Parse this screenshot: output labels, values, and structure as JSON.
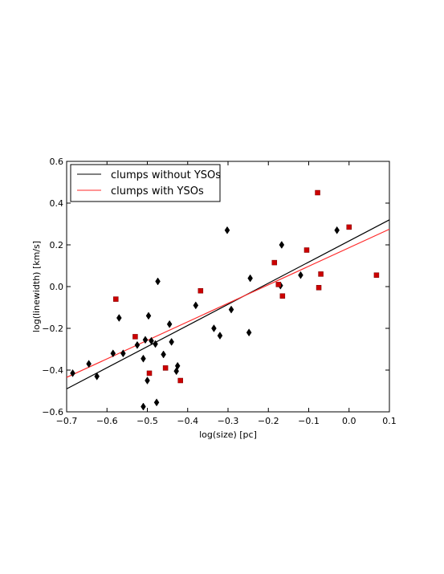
{
  "chart_data": {
    "type": "scatter",
    "xlabel": "log(size) [pc]",
    "ylabel": "log(linewidth) [km/s]",
    "xlim": [
      -0.7,
      0.1
    ],
    "ylim": [
      -0.6,
      0.6
    ],
    "xticks": [
      -0.7,
      -0.6,
      -0.5,
      -0.4,
      -0.3,
      -0.2,
      -0.1,
      0.0,
      0.1
    ],
    "yticks": [
      -0.6,
      -0.4,
      -0.2,
      0.0,
      0.2,
      0.4,
      0.6
    ],
    "xtick_labels": [
      "−0.7",
      "−0.6",
      "−0.5",
      "−0.4",
      "−0.3",
      "−0.2",
      "−0.1",
      "0.0",
      "0.1"
    ],
    "ytick_labels": [
      "−0.6",
      "−0.4",
      "−0.2",
      "0.0",
      "0.2",
      "0.4",
      "0.6"
    ],
    "grid": false,
    "legend_position": "top-left",
    "series": [
      {
        "name": "clumps without YSOs",
        "color": "#000000",
        "marker": "diamond",
        "points": [
          [
            -0.685,
            -0.415
          ],
          [
            -0.645,
            -0.37
          ],
          [
            -0.625,
            -0.43
          ],
          [
            -0.585,
            -0.32
          ],
          [
            -0.57,
            -0.15
          ],
          [
            -0.56,
            -0.32
          ],
          [
            -0.525,
            -0.28
          ],
          [
            -0.51,
            -0.575
          ],
          [
            -0.51,
            -0.345
          ],
          [
            -0.505,
            -0.255
          ],
          [
            -0.5,
            -0.45
          ],
          [
            -0.497,
            -0.14
          ],
          [
            -0.49,
            -0.26
          ],
          [
            -0.48,
            -0.275
          ],
          [
            -0.477,
            -0.555
          ],
          [
            -0.474,
            0.025
          ],
          [
            -0.46,
            -0.325
          ],
          [
            -0.445,
            -0.18
          ],
          [
            -0.44,
            -0.265
          ],
          [
            -0.428,
            -0.405
          ],
          [
            -0.425,
            -0.38
          ],
          [
            -0.38,
            -0.09
          ],
          [
            -0.335,
            -0.2
          ],
          [
            -0.32,
            -0.235
          ],
          [
            -0.302,
            0.27
          ],
          [
            -0.292,
            -0.11
          ],
          [
            -0.248,
            -0.22
          ],
          [
            -0.245,
            0.04
          ],
          [
            -0.17,
            0.005
          ],
          [
            -0.167,
            0.2
          ],
          [
            -0.12,
            0.055
          ],
          [
            -0.03,
            0.27
          ]
        ]
      },
      {
        "name": "clumps with YSOs",
        "color": "#cc0000",
        "marker": "square",
        "points": [
          [
            -0.578,
            -0.06
          ],
          [
            -0.53,
            -0.24
          ],
          [
            -0.495,
            -0.415
          ],
          [
            -0.455,
            -0.39
          ],
          [
            -0.418,
            -0.45
          ],
          [
            -0.368,
            -0.02
          ],
          [
            -0.185,
            0.115
          ],
          [
            -0.175,
            0.01
          ],
          [
            -0.165,
            -0.045
          ],
          [
            -0.105,
            0.175
          ],
          [
            -0.078,
            0.45
          ],
          [
            -0.075,
            -0.005
          ],
          [
            -0.07,
            0.06
          ],
          [
            0.0,
            0.285
          ],
          [
            0.068,
            0.055
          ]
        ]
      }
    ],
    "fits": [
      {
        "name": "clumps without YSOs",
        "color": "#000000",
        "x": [
          -0.7,
          0.1
        ],
        "y": [
          -0.49,
          0.32
        ]
      },
      {
        "name": "clumps with YSOs",
        "color": "#ff2a2a",
        "x": [
          -0.7,
          0.1
        ],
        "y": [
          -0.435,
          0.275
        ]
      }
    ]
  }
}
